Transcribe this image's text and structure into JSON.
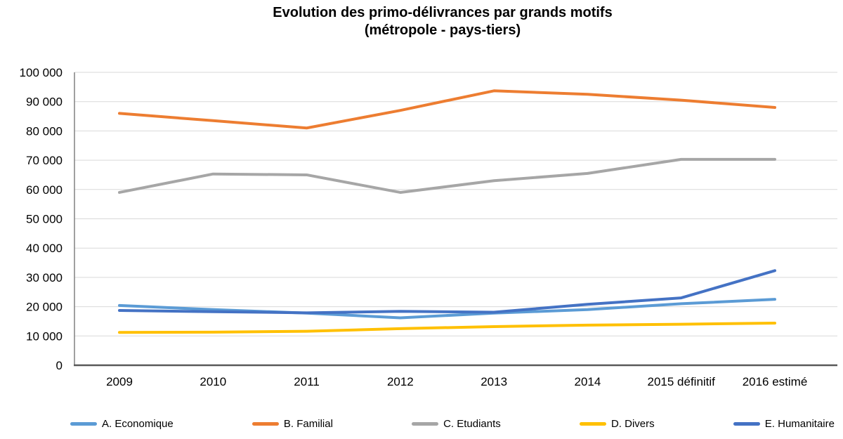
{
  "title": {
    "line1": "Evolution des primo-délivrances par grands motifs",
    "line2": "(métropole - pays-tiers)"
  },
  "chart_data": {
    "type": "line",
    "title": "Evolution des primo-délivrances par grands motifs (métropole - pays-tiers)",
    "categories": [
      "2009",
      "2010",
      "2011",
      "2012",
      "2013",
      "2014",
      "2015 définitif",
      "2016 estimé"
    ],
    "series": [
      {
        "name": "A. Economique",
        "color": "#5B9BD5",
        "values": [
          20400,
          19000,
          17800,
          16200,
          17800,
          19000,
          21000,
          22500
        ]
      },
      {
        "name": "B. Familial",
        "color": "#ED7D31",
        "values": [
          86000,
          83500,
          81000,
          87000,
          93700,
          92500,
          90500,
          88000
        ]
      },
      {
        "name": "C. Etudiants",
        "color": "#A6A6A6",
        "values": [
          59000,
          65300,
          65000,
          59000,
          63000,
          65500,
          70300,
          70300
        ]
      },
      {
        "name": "D. Divers",
        "color": "#FFC000",
        "values": [
          11200,
          11300,
          11600,
          12500,
          13200,
          13700,
          14000,
          14400
        ]
      },
      {
        "name": "E. Humanitaire",
        "color": "#4472C4",
        "values": [
          18700,
          18300,
          17900,
          18400,
          18100,
          20800,
          23000,
          32300
        ]
      }
    ],
    "xlabel": "",
    "ylabel": "",
    "ylim": [
      0,
      100000
    ],
    "y_tick_step": 10000,
    "y_tick_labels": [
      "0",
      "10 000",
      "20 000",
      "30 000",
      "40 000",
      "50 000",
      "60 000",
      "70 000",
      "80 000",
      "90 000",
      "100 000"
    ],
    "grid": true,
    "legend_position": "bottom"
  },
  "colors": {
    "background": "#FFFFFF",
    "gridline": "#D9D9D9",
    "axis_x": "#595959",
    "axis_y": "#808080",
    "text": "#000000"
  }
}
